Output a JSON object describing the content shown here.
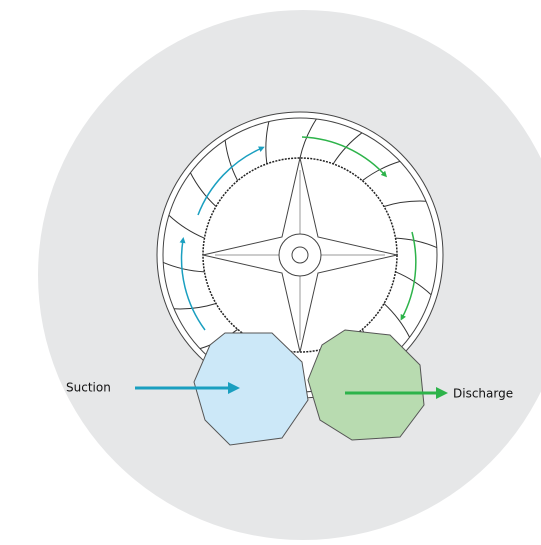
{
  "labels": {
    "suction": "Suction",
    "discharge": "Discharge"
  }
}
